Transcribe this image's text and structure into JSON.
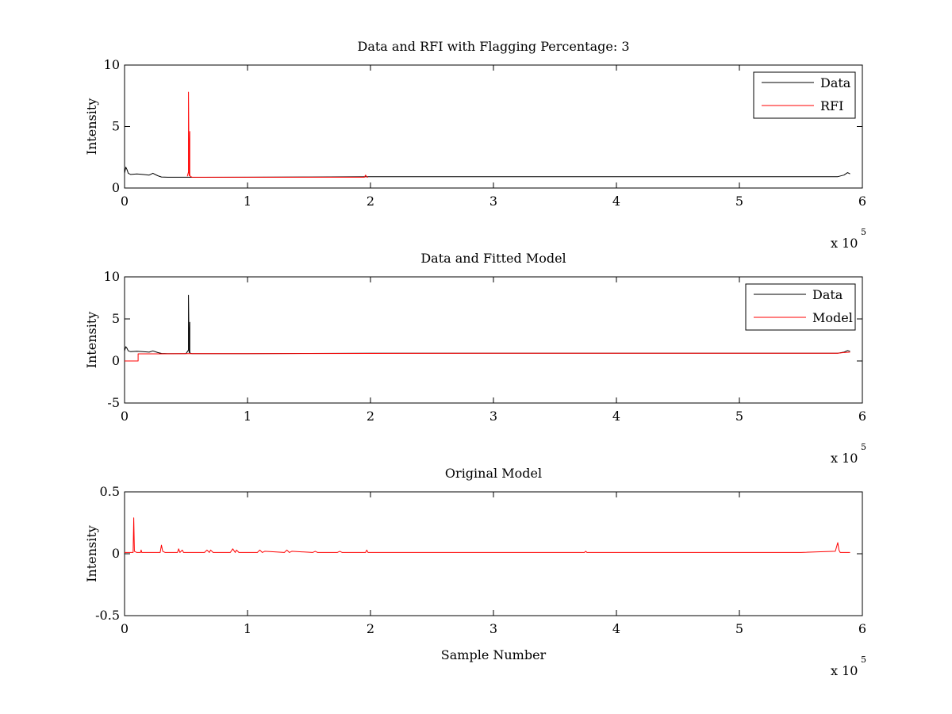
{
  "chart_data": [
    {
      "type": "line",
      "title": "Data and RFI with Flagging Percentage: 3",
      "xlabel": "",
      "ylabel": "Intensity",
      "xlim": [
        0,
        6
      ],
      "ylim": [
        0,
        10
      ],
      "x_multiplier": "x 10",
      "x_multiplier_exponent": "5",
      "x_ticks": [
        "0",
        "1",
        "2",
        "3",
        "4",
        "5",
        "6"
      ],
      "y_ticks": [
        "0",
        "5",
        "10"
      ],
      "legend": "top-right",
      "series": [
        {
          "name": "Data",
          "color": "#000000",
          "x": [
            0,
            0.01,
            0.02,
            0.03,
            0.05,
            0.1,
            0.15,
            0.2,
            0.23,
            0.27,
            0.3,
            0.35,
            0.5,
            0.52,
            0.53,
            0.55,
            1,
            1.5,
            2,
            2.5,
            3,
            3.5,
            4,
            4.5,
            5,
            5.5,
            5.8,
            5.85,
            5.88,
            5.9
          ],
          "y": [
            1.2,
            1.7,
            1.5,
            1.2,
            1.1,
            1.15,
            1.1,
            1.05,
            1.2,
            1.0,
            0.9,
            0.88,
            0.88,
            0.88,
            0.88,
            0.87,
            0.88,
            0.9,
            0.92,
            0.92,
            0.92,
            0.92,
            0.92,
            0.92,
            0.92,
            0.92,
            0.92,
            1.05,
            1.25,
            1.15
          ]
        },
        {
          "name": "RFI",
          "color": "#ff0000",
          "x": [
            0.51,
            0.52,
            0.52,
            0.525,
            0.53,
            0.53,
            0.535,
            0.55,
            1.95,
            1.96,
            1.97,
            1.98
          ],
          "y": [
            0.95,
            1.3,
            7.8,
            1.0,
            4.6,
            1.1,
            0.95,
            0.88,
            0.88,
            1.05,
            0.9,
            0.88
          ]
        }
      ]
    },
    {
      "type": "line",
      "title": "Data and Fitted Model",
      "xlabel": "",
      "ylabel": "Intensity",
      "xlim": [
        0,
        6
      ],
      "ylim": [
        -5,
        10
      ],
      "x_multiplier": "x 10",
      "x_multiplier_exponent": "5",
      "x_ticks": [
        "0",
        "1",
        "2",
        "3",
        "4",
        "5",
        "6"
      ],
      "y_ticks": [
        "-5",
        "0",
        "5",
        "10"
      ],
      "legend": "top-right",
      "series": [
        {
          "name": "Data",
          "color": "#000000",
          "x": [
            0,
            0.01,
            0.02,
            0.03,
            0.05,
            0.1,
            0.15,
            0.2,
            0.23,
            0.27,
            0.3,
            0.35,
            0.5,
            0.52,
            0.52,
            0.525,
            0.53,
            0.53,
            0.535,
            0.55,
            1,
            1.5,
            2,
            2.5,
            3,
            3.5,
            4,
            4.5,
            5,
            5.5,
            5.8,
            5.85,
            5.88,
            5.9
          ],
          "y": [
            1.2,
            1.7,
            1.5,
            1.2,
            1.1,
            1.15,
            1.1,
            1.05,
            1.2,
            1.0,
            0.9,
            0.88,
            0.88,
            1.3,
            7.8,
            1.0,
            4.6,
            1.1,
            0.9,
            0.87,
            0.88,
            0.9,
            0.92,
            0.92,
            0.92,
            0.92,
            0.92,
            0.92,
            0.92,
            0.92,
            0.92,
            1.05,
            1.25,
            1.15
          ]
        },
        {
          "name": "Model",
          "color": "#ff0000",
          "x": [
            0,
            0.11,
            0.11,
            0.3,
            0.5,
            1,
            2,
            3,
            4,
            5,
            5.8,
            5.85,
            5.9
          ],
          "y": [
            0,
            0,
            0.85,
            0.85,
            0.87,
            0.88,
            0.9,
            0.92,
            0.92,
            0.92,
            0.92,
            1.0,
            1.05
          ]
        }
      ]
    },
    {
      "type": "line",
      "title": "Original Model",
      "xlabel": "Sample Number",
      "ylabel": "Intensity",
      "xlim": [
        0,
        6
      ],
      "ylim": [
        -0.5,
        0.5
      ],
      "x_multiplier": "x 10",
      "x_multiplier_exponent": "5",
      "x_ticks": [
        "0",
        "1",
        "2",
        "3",
        "4",
        "5",
        "6"
      ],
      "y_ticks": [
        "-0.5",
        "0",
        "0.5"
      ],
      "legend": "none",
      "series": [
        {
          "color": "#ff0000",
          "x": [
            0,
            0.05,
            0.07,
            0.075,
            0.08,
            0.1,
            0.13,
            0.135,
            0.14,
            0.2,
            0.29,
            0.3,
            0.31,
            0.33,
            0.43,
            0.44,
            0.45,
            0.47,
            0.48,
            0.5,
            0.65,
            0.67,
            0.69,
            0.7,
            0.72,
            0.86,
            0.88,
            0.9,
            0.91,
            0.93,
            1.08,
            1.1,
            1.12,
            1.14,
            1.3,
            1.32,
            1.34,
            1.36,
            1.53,
            1.55,
            1.57,
            1.73,
            1.75,
            1.77,
            1.96,
            1.97,
            1.98,
            2.5,
            3,
            3.5,
            3.74,
            3.75,
            3.76,
            4.5,
            5,
            5.5,
            5.78,
            5.8,
            5.81,
            5.82,
            5.84,
            5.9
          ],
          "y": [
            0.01,
            0.01,
            0.01,
            0.29,
            0.02,
            0.01,
            0.01,
            0.03,
            0.01,
            0.01,
            0.01,
            0.07,
            0.02,
            0.01,
            0.01,
            0.04,
            0.01,
            0.03,
            0.01,
            0.01,
            0.01,
            0.03,
            0.01,
            0.03,
            0.01,
            0.01,
            0.04,
            0.01,
            0.03,
            0.01,
            0.01,
            0.03,
            0.01,
            0.02,
            0.01,
            0.03,
            0.01,
            0.02,
            0.01,
            0.02,
            0.01,
            0.01,
            0.02,
            0.01,
            0.01,
            0.03,
            0.01,
            0.01,
            0.01,
            0.01,
            0.01,
            0.02,
            0.01,
            0.01,
            0.01,
            0.01,
            0.02,
            0.09,
            0.03,
            0.01,
            0.01,
            0.01
          ]
        }
      ]
    }
  ]
}
